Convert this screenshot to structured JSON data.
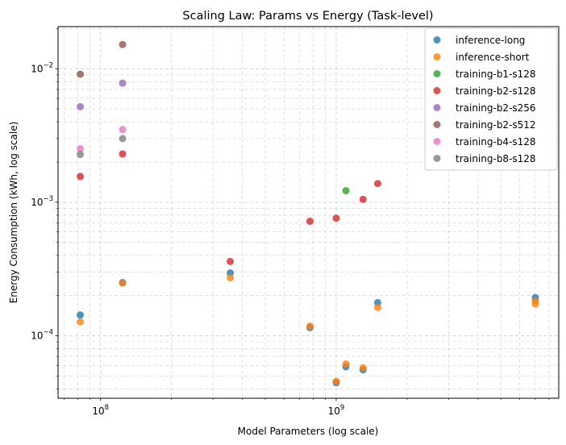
{
  "chart_data": {
    "type": "scatter",
    "title": "Scaling Law: Params vs Energy (Task-level)",
    "xlabel": "Model Parameters (log scale)",
    "ylabel": "Energy Consumption (kWh, log scale)",
    "xscale": "log",
    "yscale": "log",
    "xlim": [
      66000000,
      8800000000
    ],
    "ylim": [
      3.4e-05,
      0.0207
    ],
    "x_ticks": [
      {
        "value": 100000000,
        "base": "10",
        "exp": "8"
      },
      {
        "value": 1000000000,
        "base": "10",
        "exp": "9"
      }
    ],
    "y_ticks": [
      {
        "value": 0.0001,
        "base": "10",
        "exp": "−4"
      },
      {
        "value": 0.001,
        "base": "10",
        "exp": "−3"
      },
      {
        "value": 0.01,
        "base": "10",
        "exp": "−2"
      }
    ],
    "grid": true,
    "grid_style": "dashed",
    "legend_position": "upper right",
    "series": [
      {
        "name": "inference-long",
        "color": "#1f77b4",
        "points": [
          [
            82000000,
            0.000143
          ],
          [
            124000000,
            0.00025
          ],
          [
            355000000,
            0.000295
          ],
          [
            774000000,
            0.000115
          ],
          [
            1000000000,
            4.45e-05
          ],
          [
            1100000000,
            5.85e-05
          ],
          [
            1300000000,
            5.55e-05
          ],
          [
            1500000000,
            0.000177
          ],
          [
            7000000000,
            0.000193
          ]
        ]
      },
      {
        "name": "inference-short",
        "color": "#ff7f0e",
        "points": [
          [
            82000000,
            0.000127
          ],
          [
            124000000,
            0.000248
          ],
          [
            355000000,
            0.000272
          ],
          [
            774000000,
            0.000118
          ],
          [
            1000000000,
            4.55e-05
          ],
          [
            1100000000,
            6.15e-05
          ],
          [
            1300000000,
            5.75e-05
          ],
          [
            1500000000,
            0.000163
          ],
          [
            7000000000,
            0.000173
          ],
          [
            7000000000,
            0.000182
          ]
        ]
      },
      {
        "name": "training-b1-s128",
        "color": "#2ca02c",
        "points": [
          [
            1100000000,
            0.00122
          ]
        ]
      },
      {
        "name": "training-b2-s128",
        "color": "#d62728",
        "points": [
          [
            82000000,
            0.00156
          ],
          [
            124000000,
            0.0023
          ],
          [
            355000000,
            0.00036
          ],
          [
            774000000,
            0.00072
          ],
          [
            1000000000,
            0.00076
          ],
          [
            1300000000,
            0.00105
          ],
          [
            1500000000,
            0.00138
          ]
        ]
      },
      {
        "name": "training-b2-s256",
        "color": "#9467bd",
        "points": [
          [
            82000000,
            0.0052
          ],
          [
            124000000,
            0.0078
          ]
        ]
      },
      {
        "name": "training-b2-s512",
        "color": "#8c564b",
        "points": [
          [
            82000000,
            0.0091
          ],
          [
            124000000,
            0.0152
          ]
        ]
      },
      {
        "name": "training-b4-s128",
        "color": "#e377c2",
        "points": [
          [
            82000000,
            0.00252
          ],
          [
            124000000,
            0.0035
          ]
        ]
      },
      {
        "name": "training-b8-s128",
        "color": "#7f7f7f",
        "points": [
          [
            82000000,
            0.00228
          ],
          [
            124000000,
            0.003
          ]
        ]
      }
    ]
  }
}
